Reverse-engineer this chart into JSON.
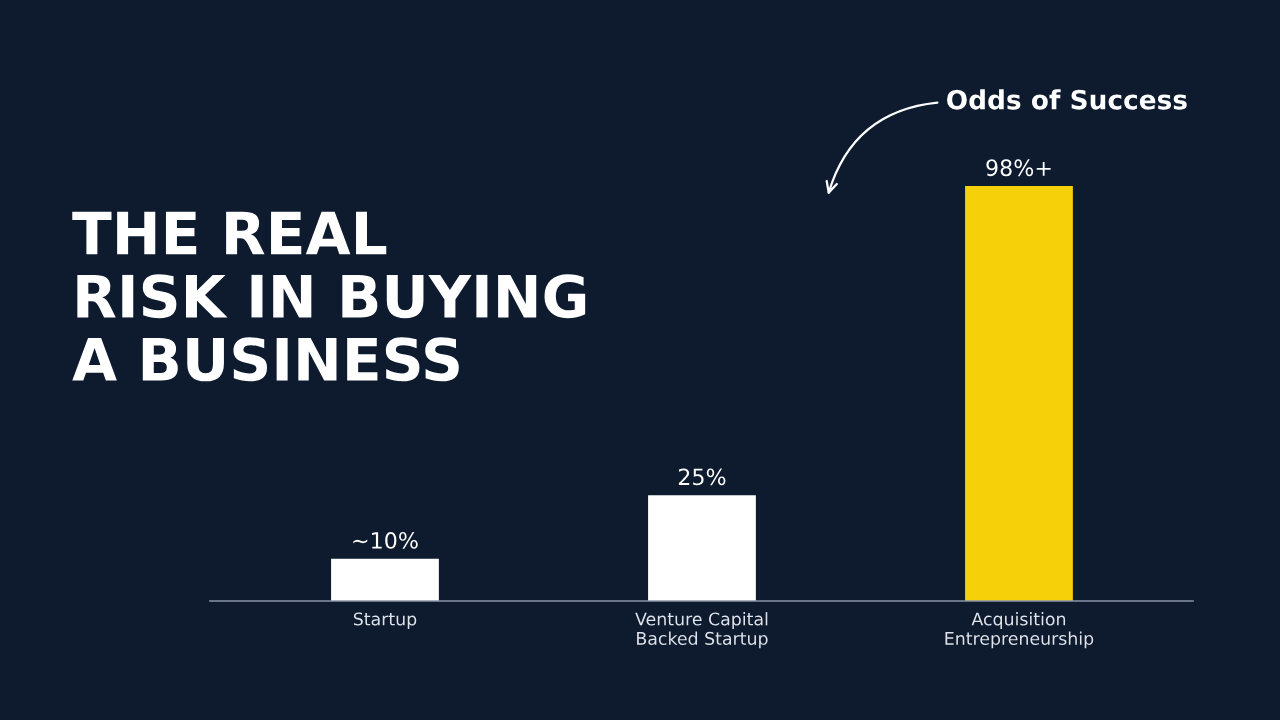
{
  "chart_data": {
    "type": "bar",
    "title": "THE REAL\nRISK IN BUYING\nA BUSINESS",
    "categories": [
      "Startup",
      "Venture Capital\nBacked Startup",
      "Acquisition\nEntrepreneurship"
    ],
    "values": [
      10,
      25,
      98
    ],
    "colors": [
      "#ffffff",
      "#ffffff",
      "#f6d10a"
    ],
    "value_labels": [
      "~10%",
      "25%",
      "98%+"
    ],
    "annotations": [
      "Odds of Success"
    ],
    "grid": false,
    "legend": false
  }
}
